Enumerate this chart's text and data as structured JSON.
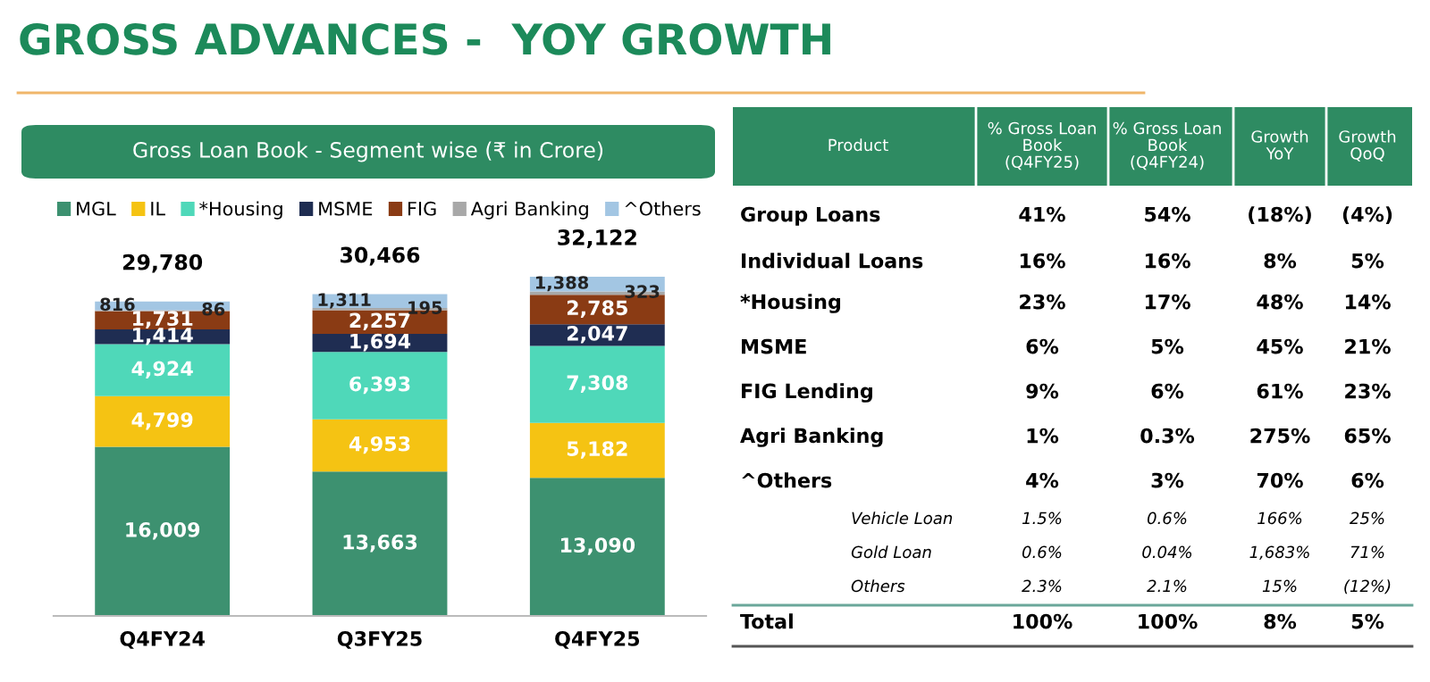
{
  "chart_data": [
    {
      "type": "bar",
      "title": "GROSS ADVANCES -  YOY GROWTH",
      "subtitle": "Gross Loan Book - Segment wise (₹ in Crore)",
      "categories": [
        "Q4FY24",
        "Q3FY25",
        "Q4FY25"
      ],
      "stacked": true,
      "legend": "top",
      "series": [
        {
          "name": "MGL",
          "color": "#3d9170",
          "values": [
            16009,
            13663,
            13090
          ],
          "value_labels": [
            "16,009",
            "13,663",
            "13,090"
          ]
        },
        {
          "name": "IL",
          "color": "#f5c313",
          "values": [
            4799,
            4953,
            5182
          ],
          "value_labels": [
            "4,799",
            "4,953",
            "5,182"
          ]
        },
        {
          "name": "*Housing",
          "color": "#4fd8b9",
          "values": [
            4924,
            6393,
            7308
          ],
          "value_labels": [
            "4,924",
            "6,393",
            "7,308"
          ]
        },
        {
          "name": "MSME",
          "color": "#1f2d52",
          "values": [
            1414,
            1694,
            2047
          ],
          "value_labels": [
            "1,414",
            "1,694",
            "2,047"
          ]
        },
        {
          "name": "FIG",
          "color": "#8a3b14",
          "values": [
            1731,
            2257,
            2785
          ],
          "value_labels": [
            "1,731",
            "2,257",
            "2,785"
          ]
        },
        {
          "name": "Agri Banking",
          "color": "#a8a8a8",
          "values": [
            86,
            195,
            323
          ],
          "value_labels": [
            "86",
            "195",
            "323"
          ]
        },
        {
          "name": "^Others",
          "color": "#a3c6e3",
          "values": [
            816,
            1311,
            1388
          ],
          "value_labels": [
            "816",
            "1,311",
            "1,388"
          ]
        }
      ],
      "totals": [
        "29,780",
        "30,466",
        "32,122"
      ]
    },
    {
      "type": "other",
      "annotations": [
        "Product",
        "% Gross Loan\nBook\n(Q4FY25)",
        "% Gross Loan\nBook\n(Q4FY24)",
        "Growth\nYoY",
        "Growth\nQoQ",
        "Group Loans",
        "41%",
        "54%",
        "(18%)",
        "(4%)",
        "Individual Loans",
        "16%",
        "16%",
        "8%",
        "5%",
        "*Housing",
        "23%",
        "17%",
        "48%",
        "14%",
        "MSME",
        "6%",
        "5%",
        "45%",
        "21%",
        "FIG Lending",
        "9%",
        "6%",
        "61%",
        "23%",
        "Agri Banking",
        "1%",
        "0.3%",
        "275%",
        "65%",
        "^Others",
        "4%",
        "3%",
        "70%",
        "6%",
        "Vehicle Loan",
        "1.5%",
        "0.6%",
        "166%",
        "25%",
        "Gold Loan",
        "0.6%",
        "0.04%",
        "1,683%",
        "71%",
        "Others",
        "2.3%",
        "2.1%",
        "15%",
        "(12%)",
        "Total",
        "100%",
        "100%",
        "8%",
        "5%"
      ]
    }
  ]
}
